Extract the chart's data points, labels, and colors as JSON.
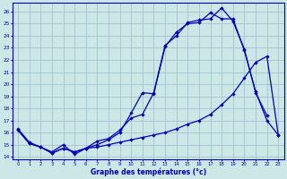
{
  "title": "Graphe des températures (°c)",
  "bg_color": "#cce8e6",
  "line_color": "#0000bb",
  "grid_color": "#99bbcc",
  "xlim": [
    -0.5,
    23.5
  ],
  "ylim": [
    13.8,
    26.7
  ],
  "xticks": [
    0,
    1,
    2,
    3,
    4,
    5,
    6,
    7,
    8,
    9,
    10,
    11,
    12,
    13,
    14,
    15,
    16,
    17,
    18,
    19,
    20,
    21,
    22,
    23
  ],
  "yticks": [
    14,
    15,
    16,
    17,
    18,
    19,
    20,
    21,
    22,
    23,
    24,
    25,
    26
  ],
  "line1_x": [
    0,
    1,
    2,
    3,
    4,
    5,
    6,
    7,
    8,
    9,
    10,
    11,
    12,
    13,
    14,
    15,
    16,
    17,
    18,
    19,
    20,
    21,
    22
  ],
  "line1_y": [
    16.3,
    15.2,
    14.8,
    14.4,
    15.0,
    14.2,
    14.7,
    15.3,
    15.5,
    16.2,
    17.2,
    17.5,
    19.3,
    23.2,
    24.0,
    25.1,
    25.3,
    25.4,
    26.3,
    25.2,
    22.9,
    19.3,
    17.4
  ],
  "line2_x": [
    0,
    1,
    2,
    3,
    4,
    5,
    6,
    7,
    8,
    9,
    10,
    11,
    12,
    13,
    14,
    15,
    16,
    17,
    18,
    19,
    20,
    21,
    22,
    23
  ],
  "line2_y": [
    16.2,
    15.1,
    14.8,
    14.3,
    14.7,
    14.4,
    14.7,
    14.8,
    15.0,
    15.2,
    15.4,
    15.6,
    15.8,
    16.0,
    16.3,
    16.7,
    17.0,
    17.5,
    18.3,
    19.2,
    20.5,
    21.8,
    22.3,
    15.8
  ],
  "line3_x": [
    0,
    1,
    2,
    3,
    4,
    5,
    6,
    7,
    8,
    9,
    10,
    11,
    12,
    13,
    14,
    15,
    16,
    17,
    18,
    19,
    20,
    21,
    22,
    23
  ],
  "line3_y": [
    16.2,
    15.1,
    14.8,
    14.3,
    14.7,
    14.4,
    14.7,
    15.0,
    15.4,
    16.0,
    17.6,
    19.3,
    19.2,
    23.1,
    24.3,
    25.0,
    25.1,
    25.9,
    25.4,
    25.4,
    22.8,
    19.4,
    17.0,
    15.8
  ]
}
